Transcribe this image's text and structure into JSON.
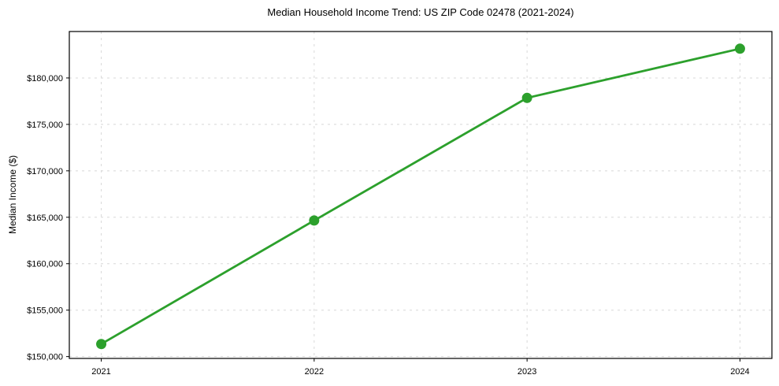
{
  "figure": {
    "background": "#ffffff",
    "text_color": "#000000"
  },
  "chart_data": {
    "type": "line",
    "title": "Median Household Income Trend: US ZIP Code 02478 (2021-2024)",
    "xlabel": "",
    "ylabel": "Median Income ($)",
    "x": [
      2021,
      2022,
      2023,
      2024
    ],
    "x_tick_labels": [
      "2021",
      "2022",
      "2023",
      "2024"
    ],
    "series": [
      {
        "values": [
          151350,
          164650,
          177850,
          183150
        ],
        "color": "#2ca02c",
        "marker": "circle"
      }
    ],
    "y_ticks": [
      150000,
      155000,
      160000,
      165000,
      170000,
      175000,
      180000
    ],
    "y_tick_labels": [
      "$150,000",
      "$155,000",
      "$160,000",
      "$165,000",
      "$170,000",
      "$175,000",
      "$180,000"
    ],
    "ylim": [
      149800,
      185000
    ],
    "xlim": [
      2020.85,
      2024.15
    ],
    "grid": true,
    "grid_color": "#d8d8d8",
    "grid_style": "dashed",
    "legend": "none",
    "line_width": 2.8,
    "marker_size": 6.5
  }
}
